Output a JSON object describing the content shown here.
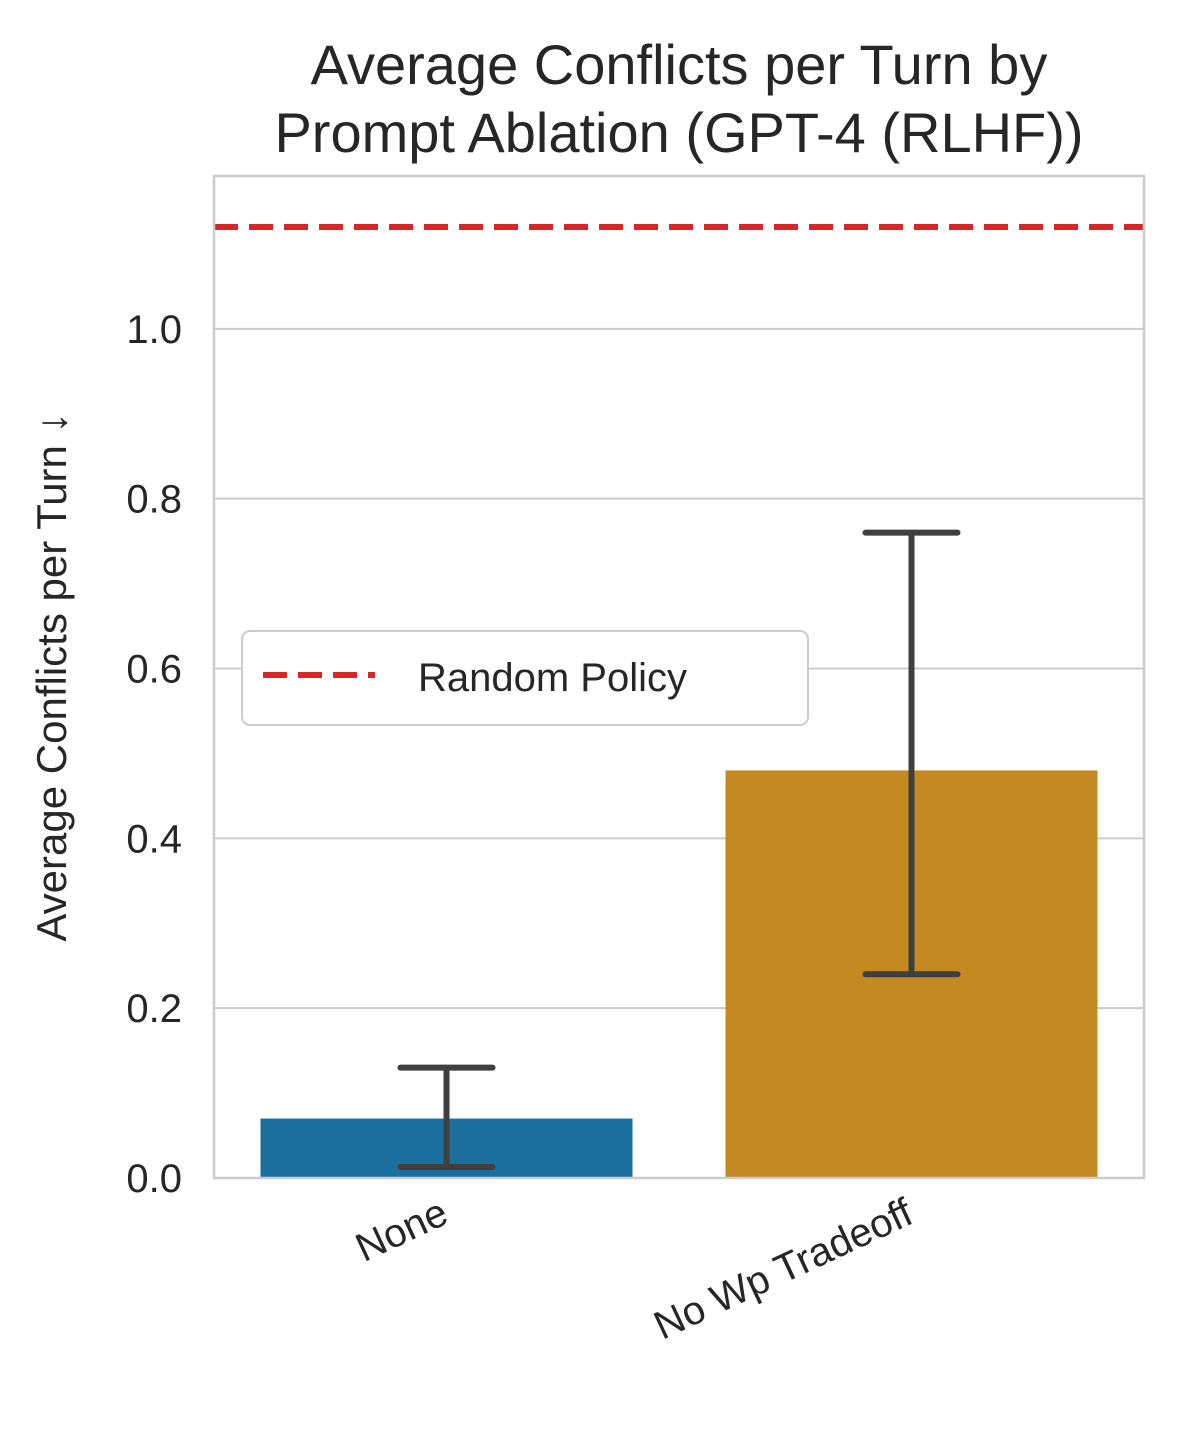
{
  "chart_data": {
    "type": "bar",
    "title_lines": [
      "Average Conflicts per Turn by",
      "Prompt Ablation (GPT-4 (RLHF))"
    ],
    "xlabel": "",
    "ylabel": "Average Conflicts per Turn ↓",
    "categories": [
      "None",
      "No Wp Tradeoff"
    ],
    "values": [
      0.07,
      0.48
    ],
    "error_low": [
      0.013,
      0.24
    ],
    "error_high": [
      0.13,
      0.76
    ],
    "bar_colors": [
      "#1a6f9e",
      "#c48920"
    ],
    "ylim": [
      0,
      1.18
    ],
    "yticks": [
      0.0,
      0.2,
      0.4,
      0.6,
      0.8,
      1.0
    ],
    "ytick_labels": [
      "0.0",
      "0.2",
      "0.4",
      "0.6",
      "0.8",
      "1.0"
    ],
    "reference_line": {
      "name": "Random Policy",
      "value": 1.12,
      "color": "#d62728",
      "style": "dashed"
    },
    "legend": {
      "entries": [
        "Random Policy"
      ],
      "placement": "center-left"
    },
    "grid": "horizontal",
    "errorbar_color": "#3f3f3f"
  }
}
